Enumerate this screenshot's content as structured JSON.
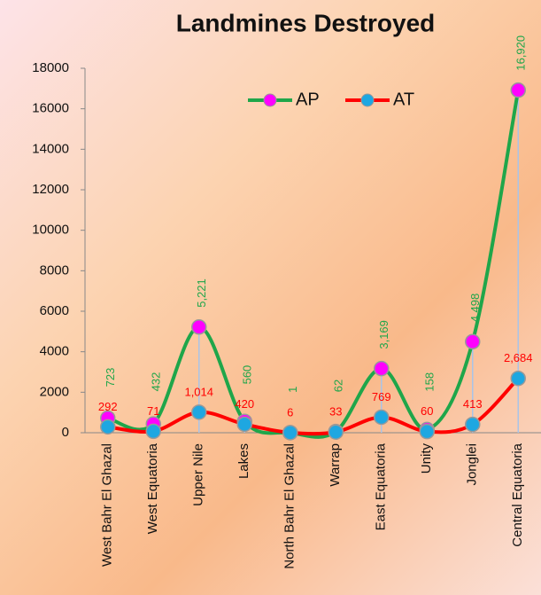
{
  "chart_data": {
    "type": "line",
    "title": "Landmines Destroyed",
    "categories": [
      "West Bahr El Ghazal",
      "West Equatoria",
      "Upper Nile",
      "Lakes",
      "North Bahr El Ghazal",
      "Warrap",
      "East Equatoria",
      "Unity",
      "Jonglei",
      "Central Equatoria"
    ],
    "series": [
      {
        "name": "AP",
        "color": "#1fa64a",
        "marker_color": "#ff00ff",
        "values": [
          723,
          432,
          5221,
          560,
          1,
          62,
          3169,
          158,
          4498,
          16920
        ],
        "value_labels": [
          "723",
          "432",
          "5,221",
          "560",
          "1",
          "62",
          "3,169",
          "158",
          "4,498",
          "16,920"
        ]
      },
      {
        "name": "AT",
        "color": "#ff0000",
        "marker_color": "#1ea7e1",
        "values": [
          292,
          71,
          1014,
          420,
          6,
          33,
          769,
          60,
          413,
          2684
        ],
        "value_labels": [
          "292",
          "71",
          "1,014",
          "420",
          "6",
          "33",
          "769",
          "60",
          "413",
          "2,684"
        ]
      }
    ],
    "ylim": [
      0,
      18000
    ],
    "yticks": [
      0,
      2000,
      4000,
      6000,
      8000,
      10000,
      12000,
      14000,
      16000,
      18000
    ],
    "smooth": true,
    "legend": "top",
    "grid": false
  }
}
